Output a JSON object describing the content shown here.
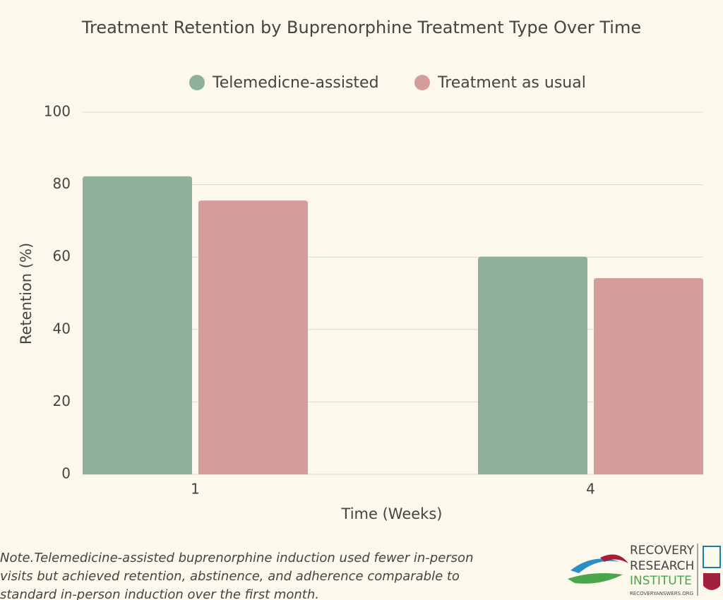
{
  "chart_data": {
    "type": "bar",
    "title": "Treatment Retention by Buprenorphine Treatment Type Over Time",
    "x_label": "Time (Weeks)",
    "y_label": "Retention (%)",
    "categories": [
      "1",
      "4"
    ],
    "series": [
      {
        "name": "Telemedicne-assisted",
        "color": "#8fb09b",
        "values": [
          82.3,
          60.1
        ]
      },
      {
        "name": "Treatment as usual",
        "color": "#d49d9a",
        "values": [
          75.6,
          54.2
        ]
      }
    ],
    "ylim": [
      0,
      100
    ],
    "yticks": [
      0,
      20,
      40,
      60,
      80,
      100
    ],
    "grid": true,
    "legend": "top"
  },
  "note": "Note.Telemedicine-assisted buprenorphine induction used fewer in-person visits but achieved retention, abstinence, and adherence comparable to standard in-person induction over the first month.",
  "logo": {
    "lines": [
      "RECOVERY",
      "RESEARCH",
      "INSTITUTE"
    ],
    "url": "RECOVERYANSWERS.ORG"
  }
}
